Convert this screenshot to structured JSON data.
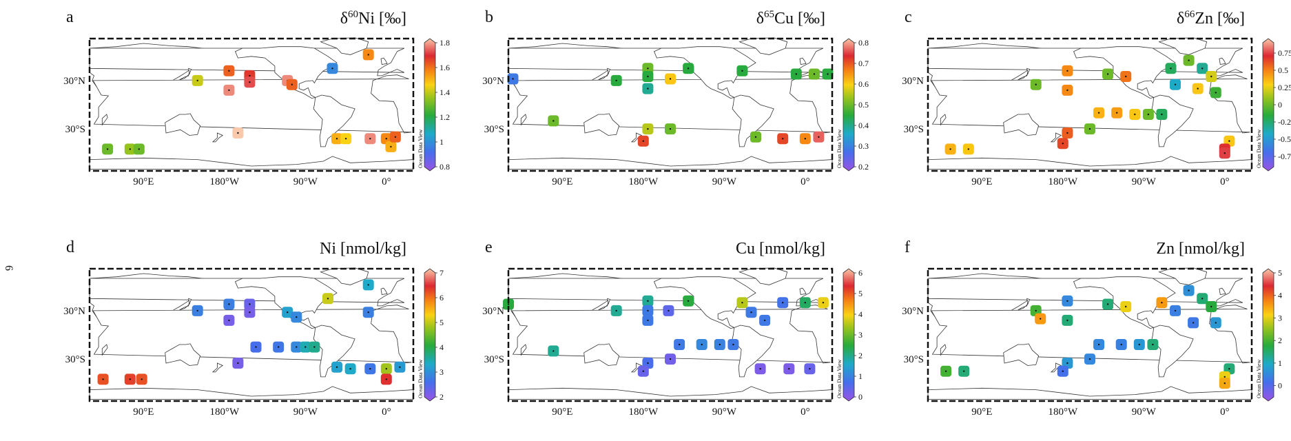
{
  "page_number": "6",
  "colors": {
    "land_fill": "#ffffff",
    "coast_stroke": "#333333",
    "frame": "#111111"
  },
  "chart_data": [
    {
      "type": "scatter",
      "panel_letter": "a",
      "title": "δ60Ni [‰]",
      "title_parts": [
        "δ",
        "60",
        "Ni [‰]"
      ],
      "x_ticks": [
        "180°W",
        "90°W",
        "0°",
        "90°E"
      ],
      "y_ticks": [
        "30°N",
        "30°S"
      ],
      "colorbar": {
        "min": 0.8,
        "max": 1.8,
        "ticks": [
          "1.8",
          "1.6",
          "1.4",
          "1.2",
          "1",
          "0.8"
        ],
        "colormap": "odv-rainbow",
        "label": "Ocean Data View"
      },
      "points": [
        {
          "lon": 150,
          "lat": 30,
          "v": 1.4
        },
        {
          "lon": -175,
          "lat": 42,
          "v": 1.6
        },
        {
          "lon": -175,
          "lat": 18,
          "v": 1.75
        },
        {
          "lon": -152,
          "lat": 36,
          "v": 1.65
        },
        {
          "lon": -152,
          "lat": 28,
          "v": 1.7
        },
        {
          "lon": -110,
          "lat": 30,
          "v": 1.75
        },
        {
          "lon": -105,
          "lat": 25,
          "v": 1.6
        },
        {
          "lon": -60,
          "lat": 45,
          "v": 1.0
        },
        {
          "lon": -20,
          "lat": 62,
          "v": 1.55
        },
        {
          "lon": -165,
          "lat": -35,
          "v": 1.8
        },
        {
          "lon": -55,
          "lat": -42,
          "v": 1.5
        },
        {
          "lon": -45,
          "lat": -42,
          "v": 1.45
        },
        {
          "lon": -18,
          "lat": -42,
          "v": 1.75
        },
        {
          "lon": 0,
          "lat": -42,
          "v": 1.55
        },
        {
          "lon": 5,
          "lat": -52,
          "v": 1.5
        },
        {
          "lon": 10,
          "lat": -40,
          "v": 1.6
        },
        {
          "lon": 50,
          "lat": -55,
          "v": 1.3
        },
        {
          "lon": 75,
          "lat": -55,
          "v": 1.35
        },
        {
          "lon": 85,
          "lat": -55,
          "v": 1.3
        }
      ]
    },
    {
      "type": "scatter",
      "panel_letter": "b",
      "title": "δ65Cu [‰]",
      "title_parts": [
        "δ",
        "65",
        "Cu [‰]"
      ],
      "x_ticks": [
        "180°W",
        "90°W",
        "0°",
        "90°E"
      ],
      "y_ticks": [
        "30°N",
        "30°S"
      ],
      "colorbar": {
        "min": 0.2,
        "max": 0.8,
        "ticks": [
          "0.8",
          "0.7",
          "0.6",
          "0.5",
          "0.4",
          "0.3",
          "0.2"
        ],
        "colormap": "odv-rainbow",
        "label": "Ocean Data View"
      },
      "points": [
        {
          "lon": 150,
          "lat": 30,
          "v": 0.45
        },
        {
          "lon": -175,
          "lat": 45,
          "v": 0.5
        },
        {
          "lon": -175,
          "lat": 35,
          "v": 0.45
        },
        {
          "lon": -175,
          "lat": 20,
          "v": 0.4
        },
        {
          "lon": -150,
          "lat": 32,
          "v": 0.6
        },
        {
          "lon": -130,
          "lat": 45,
          "v": 0.45
        },
        {
          "lon": -70,
          "lat": 42,
          "v": 0.45
        },
        {
          "lon": -10,
          "lat": 38,
          "v": 0.45
        },
        {
          "lon": 10,
          "lat": 38,
          "v": 0.5
        },
        {
          "lon": 25,
          "lat": 38,
          "v": 0.45
        },
        {
          "lon": 35,
          "lat": 32,
          "v": 0.3
        },
        {
          "lon": -175,
          "lat": -30,
          "v": 0.55
        },
        {
          "lon": -180,
          "lat": -45,
          "v": 0.7
        },
        {
          "lon": -150,
          "lat": -30,
          "v": 0.5
        },
        {
          "lon": -55,
          "lat": -40,
          "v": 0.5
        },
        {
          "lon": -25,
          "lat": -42,
          "v": 0.7
        },
        {
          "lon": 0,
          "lat": -42,
          "v": 0.65
        },
        {
          "lon": 15,
          "lat": -40,
          "v": 0.75
        },
        {
          "lon": 80,
          "lat": -20,
          "v": 0.5
        }
      ]
    },
    {
      "type": "scatter",
      "panel_letter": "c",
      "title": "δ66Zn [‰]",
      "title_parts": [
        "δ",
        "66",
        "Zn [‰]"
      ],
      "x_ticks": [
        "180°W",
        "90°W",
        "0°",
        "90°E"
      ],
      "y_ticks": [
        "30°N",
        "30°S"
      ],
      "colorbar": {
        "min": -0.9,
        "max": 0.9,
        "ticks": [
          "0.75",
          "0.5",
          "0.25",
          "0",
          "-0.25",
          "-0.5",
          "-0.75"
        ],
        "colormap": "odv-rainbow",
        "label": "Ocean Data View"
      },
      "points": [
        {
          "lon": 150,
          "lat": 25,
          "v": 0.0
        },
        {
          "lon": -175,
          "lat": 42,
          "v": 0.45
        },
        {
          "lon": -175,
          "lat": 18,
          "v": 0.45
        },
        {
          "lon": -130,
          "lat": 38,
          "v": 0.0
        },
        {
          "lon": -110,
          "lat": 35,
          "v": 0.5
        },
        {
          "lon": -60,
          "lat": 45,
          "v": -0.2
        },
        {
          "lon": -40,
          "lat": 55,
          "v": 0.0
        },
        {
          "lon": -25,
          "lat": 45,
          "v": -0.3
        },
        {
          "lon": -15,
          "lat": 35,
          "v": 0.2
        },
        {
          "lon": -55,
          "lat": 25,
          "v": -0.4
        },
        {
          "lon": -30,
          "lat": 20,
          "v": 0.3
        },
        {
          "lon": -10,
          "lat": 15,
          "v": -0.1
        },
        {
          "lon": -140,
          "lat": -10,
          "v": 0.35
        },
        {
          "lon": -120,
          "lat": -10,
          "v": 0.4
        },
        {
          "lon": -100,
          "lat": -12,
          "v": 0.3
        },
        {
          "lon": -85,
          "lat": -12,
          "v": 0.0
        },
        {
          "lon": -70,
          "lat": -12,
          "v": -0.2
        },
        {
          "lon": -175,
          "lat": -35,
          "v": 0.55
        },
        {
          "lon": -180,
          "lat": -48,
          "v": 0.6
        },
        {
          "lon": -150,
          "lat": -30,
          "v": 0.0
        },
        {
          "lon": 5,
          "lat": -45,
          "v": 0.3
        },
        {
          "lon": 0,
          "lat": -55,
          "v": 0.65
        },
        {
          "lon": 0,
          "lat": -60,
          "v": 0.7
        },
        {
          "lon": 55,
          "lat": -55,
          "v": 0.35
        },
        {
          "lon": 75,
          "lat": -55,
          "v": 0.3
        }
      ]
    },
    {
      "type": "scatter",
      "panel_letter": "d",
      "title": "Ni [nmol/kg]",
      "x_ticks": [
        "180°W",
        "90°W",
        "0°",
        "90°E"
      ],
      "y_ticks": [
        "30°N",
        "30°S"
      ],
      "colorbar": {
        "min": 2,
        "max": 7,
        "ticks": [
          "7",
          "6",
          "5",
          "4",
          "3",
          "2"
        ],
        "colormap": "odv-rainbow",
        "label": "Ocean Data View"
      },
      "points": [
        {
          "lon": 150,
          "lat": 30,
          "v": 2.9
        },
        {
          "lon": -175,
          "lat": 38,
          "v": 2.9
        },
        {
          "lon": -175,
          "lat": 18,
          "v": 2.3
        },
        {
          "lon": -152,
          "lat": 38,
          "v": 2.4
        },
        {
          "lon": -152,
          "lat": 28,
          "v": 2.3
        },
        {
          "lon": -110,
          "lat": 28,
          "v": 3.3
        },
        {
          "lon": -100,
          "lat": 22,
          "v": 3.0
        },
        {
          "lon": -65,
          "lat": 45,
          "v": 5.0
        },
        {
          "lon": -20,
          "lat": 62,
          "v": 3.4
        },
        {
          "lon": -20,
          "lat": 28,
          "v": 2.9
        },
        {
          "lon": -145,
          "lat": -15,
          "v": 2.7
        },
        {
          "lon": -120,
          "lat": -15,
          "v": 2.8
        },
        {
          "lon": -100,
          "lat": -15,
          "v": 3.0
        },
        {
          "lon": -90,
          "lat": -15,
          "v": 3.5
        },
        {
          "lon": -80,
          "lat": -15,
          "v": 3.7
        },
        {
          "lon": -165,
          "lat": -35,
          "v": 2.3
        },
        {
          "lon": -55,
          "lat": -40,
          "v": 3.3
        },
        {
          "lon": -40,
          "lat": -42,
          "v": 3.4
        },
        {
          "lon": -18,
          "lat": -42,
          "v": 2.8
        },
        {
          "lon": 0,
          "lat": -42,
          "v": 4.8
        },
        {
          "lon": 0,
          "lat": -55,
          "v": 6.3
        },
        {
          "lon": 15,
          "lat": -40,
          "v": 3.2
        },
        {
          "lon": 45,
          "lat": -55,
          "v": 6.1
        },
        {
          "lon": 75,
          "lat": -55,
          "v": 6.2
        },
        {
          "lon": 88,
          "lat": -55,
          "v": 6.1
        }
      ]
    },
    {
      "type": "scatter",
      "panel_letter": "e",
      "title": "Cu [nmol/kg]",
      "x_ticks": [
        "180°W",
        "90°W",
        "0°",
        "90°E"
      ],
      "y_ticks": [
        "30°N",
        "30°S"
      ],
      "colorbar": {
        "min": 0,
        "max": 6,
        "ticks": [
          "6",
          "5",
          "4",
          "3",
          "2",
          "1",
          "0"
        ],
        "colormap": "odv-rainbow",
        "label": "Ocean Data View"
      },
      "points": [
        {
          "lon": 150,
          "lat": 30,
          "v": 2.0
        },
        {
          "lon": -175,
          "lat": 42,
          "v": 2.0
        },
        {
          "lon": -175,
          "lat": 30,
          "v": 1.0
        },
        {
          "lon": -175,
          "lat": 18,
          "v": 1.0
        },
        {
          "lon": -152,
          "lat": 30,
          "v": 0.6
        },
        {
          "lon": -130,
          "lat": 42,
          "v": 2.5
        },
        {
          "lon": -70,
          "lat": 40,
          "v": 3.5
        },
        {
          "lon": -60,
          "lat": 28,
          "v": 1.0
        },
        {
          "lon": -45,
          "lat": 18,
          "v": 1.0
        },
        {
          "lon": -25,
          "lat": 40,
          "v": 0.9
        },
        {
          "lon": 0,
          "lat": 40,
          "v": 2.3
        },
        {
          "lon": 20,
          "lat": 40,
          "v": 3.8
        },
        {
          "lon": 30,
          "lat": 38,
          "v": 2.5
        },
        {
          "lon": -140,
          "lat": -12,
          "v": 1.0
        },
        {
          "lon": -115,
          "lat": -12,
          "v": 1.2
        },
        {
          "lon": -95,
          "lat": -12,
          "v": 1.1
        },
        {
          "lon": -80,
          "lat": -12,
          "v": 1.0
        },
        {
          "lon": -175,
          "lat": -35,
          "v": 0.8
        },
        {
          "lon": -180,
          "lat": -45,
          "v": 0.5
        },
        {
          "lon": -150,
          "lat": -30,
          "v": 0.4
        },
        {
          "lon": -50,
          "lat": -42,
          "v": 0.3
        },
        {
          "lon": -18,
          "lat": -42,
          "v": 0.3
        },
        {
          "lon": 5,
          "lat": -42,
          "v": 0.5
        },
        {
          "lon": 80,
          "lat": -20,
          "v": 2.0
        }
      ]
    },
    {
      "type": "scatter",
      "panel_letter": "f",
      "title": "Zn [nmol/kg]",
      "x_ticks": [
        "180°W",
        "90°W",
        "0°",
        "90°E"
      ],
      "y_ticks": [
        "30°N",
        "30°S"
      ],
      "colorbar": {
        "min": -0.5,
        "max": 5,
        "ticks": [
          "5",
          "4",
          "3",
          "2",
          "1",
          "0"
        ],
        "colormap": "odv-rainbow",
        "label": "Ocean Data View"
      },
      "points": [
        {
          "lon": 150,
          "lat": 30,
          "v": 2.0
        },
        {
          "lon": 155,
          "lat": 20,
          "v": 3.5
        },
        {
          "lon": -175,
          "lat": 42,
          "v": 0.6
        },
        {
          "lon": -175,
          "lat": 18,
          "v": 1.5
        },
        {
          "lon": -130,
          "lat": 38,
          "v": 1.5
        },
        {
          "lon": -110,
          "lat": 35,
          "v": 3.0
        },
        {
          "lon": -70,
          "lat": 40,
          "v": 3.5
        },
        {
          "lon": -55,
          "lat": 30,
          "v": 0.5
        },
        {
          "lon": -40,
          "lat": 55,
          "v": 0.7
        },
        {
          "lon": -25,
          "lat": 45,
          "v": 1.5
        },
        {
          "lon": -15,
          "lat": 35,
          "v": 1.8
        },
        {
          "lon": -35,
          "lat": 15,
          "v": 0.4
        },
        {
          "lon": -10,
          "lat": 15,
          "v": 0.8
        },
        {
          "lon": -140,
          "lat": -12,
          "v": 0.6
        },
        {
          "lon": -115,
          "lat": -12,
          "v": 0.5
        },
        {
          "lon": -95,
          "lat": -12,
          "v": 0.8
        },
        {
          "lon": -80,
          "lat": -12,
          "v": 1.5
        },
        {
          "lon": -175,
          "lat": -35,
          "v": 0.8
        },
        {
          "lon": -180,
          "lat": -45,
          "v": 0.3
        },
        {
          "lon": -150,
          "lat": -30,
          "v": 0.6
        },
        {
          "lon": 5,
          "lat": -42,
          "v": 1.5
        },
        {
          "lon": 0,
          "lat": -52,
          "v": 3.0
        },
        {
          "lon": 0,
          "lat": -60,
          "v": 3.4
        },
        {
          "lon": 50,
          "lat": -45,
          "v": 2.0
        },
        {
          "lon": 70,
          "lat": -45,
          "v": 1.5
        }
      ]
    }
  ]
}
